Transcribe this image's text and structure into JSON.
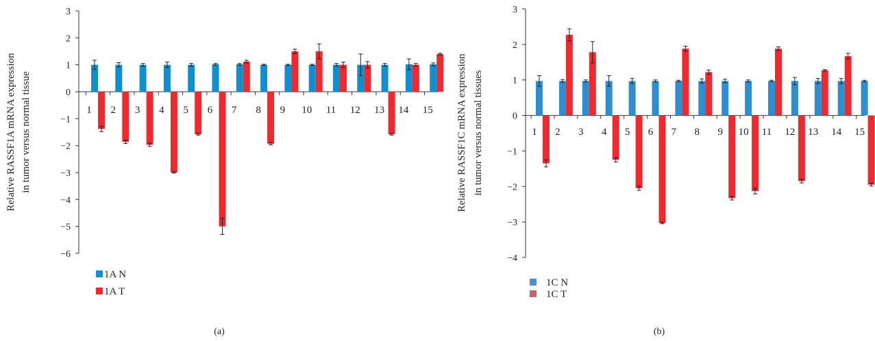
{
  "chart_data": [
    {
      "type": "bar",
      "panel_label": "(a)",
      "ylabel_lines": [
        "Relative RASSF1A mRNA expression",
        "in tumor versus normal tissue"
      ],
      "categories": [
        "1",
        "2",
        "3",
        "4",
        "5",
        "6",
        "7",
        "8",
        "9",
        "10",
        "11",
        "12",
        "13",
        "14",
        "15"
      ],
      "ylim": [
        -6,
        3
      ],
      "yticks": [
        3,
        2,
        1,
        0,
        -1,
        -2,
        -3,
        -4,
        -5,
        -6
      ],
      "ytick_labels": [
        "3",
        "2",
        "1",
        "0",
        "−1",
        "−2",
        "−3",
        "−4",
        "−5",
        "−6"
      ],
      "grid": false,
      "legend_position": "bottom-left",
      "series": [
        {
          "name": "1A N",
          "color": "#0f8fd0",
          "values": [
            1.0,
            1.0,
            1.0,
            1.0,
            1.0,
            1.02,
            1.02,
            1.0,
            1.0,
            1.0,
            1.0,
            1.0,
            1.0,
            1.02,
            1.02
          ],
          "errors": [
            0.17,
            0.08,
            0.05,
            0.1,
            0.05,
            0.03,
            0.03,
            0.02,
            0.02,
            0.02,
            0.05,
            0.4,
            0.05,
            0.2,
            0.05
          ]
        },
        {
          "name": "1A T",
          "color": "#ee2a2e",
          "values": [
            -1.38,
            -1.86,
            -1.97,
            -3.0,
            -1.58,
            -5.0,
            1.12,
            -1.93,
            1.5,
            1.5,
            1.0,
            1.0,
            -1.58,
            1.0,
            1.4
          ],
          "errors": [
            0.1,
            0.06,
            0.06,
            0.02,
            0.03,
            0.3,
            0.05,
            0.04,
            0.08,
            0.28,
            0.1,
            0.12,
            0.03,
            0.05,
            0.03
          ]
        }
      ]
    },
    {
      "type": "bar",
      "panel_label": "(b)",
      "ylabel_lines": [
        "Relative RASSF1C mRNA expression",
        "in tumor versus normal tissues"
      ],
      "categories": [
        "1",
        "2",
        "3",
        "4",
        "5",
        "6",
        "7",
        "8",
        "9",
        "10",
        "11",
        "12",
        "13",
        "14",
        "15"
      ],
      "ylim": [
        -4,
        3
      ],
      "yticks": [
        3,
        2,
        1,
        0,
        -1,
        -2,
        -3,
        -4
      ],
      "ytick_labels": [
        "3",
        "2",
        "1",
        "0",
        "−1",
        "−2",
        "−3",
        "−4"
      ],
      "grid": false,
      "legend_position": "bottom-left",
      "series": [
        {
          "name": "1C N",
          "color": "#2e8fd0",
          "legend_color": "#4a90d0",
          "values": [
            0.97,
            0.97,
            0.97,
            0.97,
            0.97,
            0.97,
            0.97,
            0.97,
            0.97,
            0.97,
            0.97,
            0.97,
            0.97,
            0.97,
            0.97
          ],
          "errors": [
            0.15,
            0.04,
            0.03,
            0.15,
            0.07,
            0.03,
            0.02,
            0.06,
            0.05,
            0.03,
            0.02,
            0.1,
            0.07,
            0.07,
            0.02
          ]
        },
        {
          "name": "1C T",
          "color": "#ee2a2e",
          "legend_color": "#c0676a",
          "values": [
            -1.35,
            2.27,
            1.78,
            -1.25,
            -2.05,
            -3.03,
            1.88,
            1.22,
            -2.33,
            -2.13,
            1.88,
            -1.85,
            1.27,
            1.67,
            -1.95
          ],
          "errors": [
            0.1,
            0.17,
            0.3,
            0.06,
            0.06,
            0.02,
            0.07,
            0.06,
            0.05,
            0.08,
            0.05,
            0.05,
            0.02,
            0.08,
            0.04
          ]
        }
      ]
    }
  ]
}
